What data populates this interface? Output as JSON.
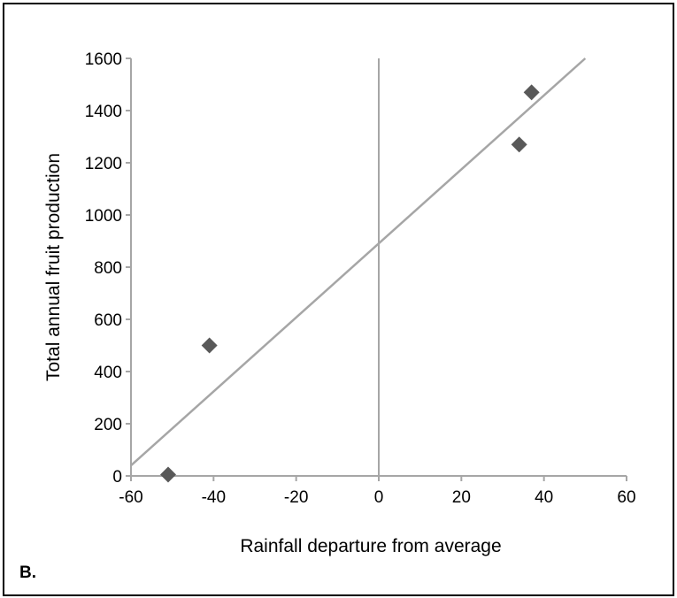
{
  "chart_data": {
    "type": "scatter",
    "xlabel": "Rainfall departure from average",
    "ylabel": "Total annual fruit production",
    "xlim": [
      -60,
      60
    ],
    "ylim": [
      0,
      1600
    ],
    "x_ticks": [
      -60,
      -40,
      -20,
      0,
      20,
      40,
      60
    ],
    "y_ticks": [
      0,
      200,
      400,
      600,
      800,
      1000,
      1200,
      1400,
      1600
    ],
    "points": [
      {
        "x": -51,
        "y": 5
      },
      {
        "x": -41,
        "y": 500
      },
      {
        "x": 34,
        "y": 1270
      },
      {
        "x": 37,
        "y": 1470
      }
    ],
    "trendline": {
      "x_start": -60,
      "y_start": 40,
      "x_end": 50,
      "y_end": 1600
    },
    "vertical_reference_x": 0,
    "grid": false,
    "colors": {
      "marker": "#595959",
      "line": "#a6a6a6",
      "axis": "#a6a6a6"
    }
  },
  "panel_label": "B."
}
